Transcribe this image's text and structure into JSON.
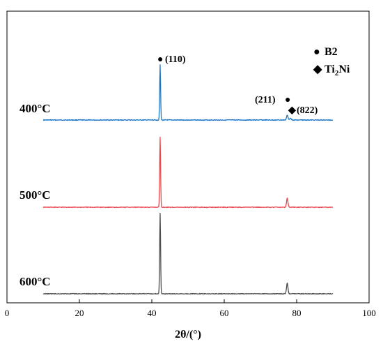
{
  "chart_data": {
    "type": "line",
    "title": "",
    "xlabel": "2θ/(°)",
    "ylabel": "",
    "xlim": [
      0,
      100
    ],
    "x_ticks": [
      "0",
      "20",
      "40",
      "60",
      "80",
      "100"
    ],
    "y_axis_shown": false,
    "grid": false,
    "legend": {
      "placement": "top-right",
      "entries": [
        {
          "symbol": "●",
          "text": "B2",
          "subscript": ""
        },
        {
          "symbol": "◆",
          "text": "Ti",
          "subscript": "2",
          "text_after": "Ni"
        }
      ]
    },
    "series": [
      {
        "name": "400°C",
        "color": "#1f77c4",
        "x_range": [
          10,
          90
        ],
        "baseline": 0,
        "peaks": [
          {
            "x": 42.3,
            "height": 79
          },
          {
            "x": 77.4,
            "height": 7
          },
          {
            "x": 78.3,
            "height": 3
          }
        ]
      },
      {
        "name": "500°C",
        "color": "#e8474c",
        "x_range": [
          10,
          90
        ],
        "baseline": 0,
        "peaks": [
          {
            "x": 42.3,
            "height": 100
          },
          {
            "x": 77.4,
            "height": 13
          }
        ]
      },
      {
        "name": "600°C",
        "color": "#4d4d4d",
        "x_range": [
          10,
          90
        ],
        "baseline": 0,
        "peaks": [
          {
            "x": 42.3,
            "height": 115
          },
          {
            "x": 77.4,
            "height": 15
          }
        ]
      }
    ],
    "annotations": [
      {
        "symbol": "●",
        "text": "(110)",
        "series": "400°C",
        "x": 42.3
      },
      {
        "symbol": "●",
        "text": "(211)",
        "series": "400°C",
        "x": 77.4
      },
      {
        "symbol": "◆",
        "text": "(822)",
        "series": "400°C",
        "x": 78.3
      }
    ]
  }
}
